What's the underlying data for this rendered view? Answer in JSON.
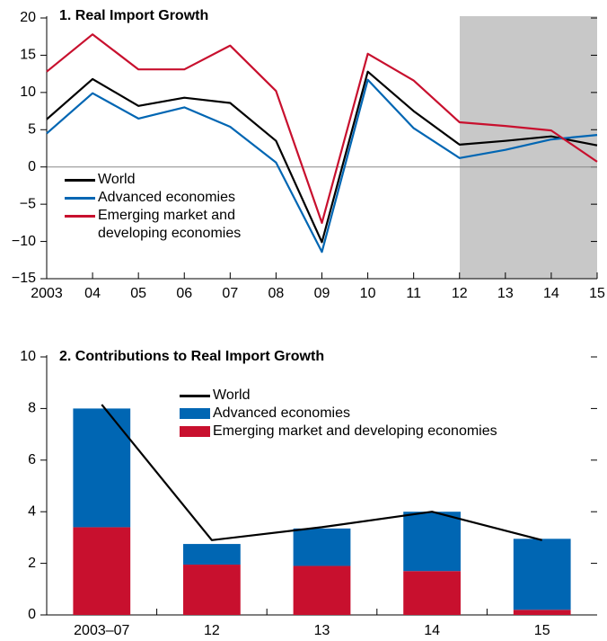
{
  "chart_data": [
    {
      "type": "line",
      "title": "1. Real Import Growth",
      "categories": [
        "2003",
        "04",
        "05",
        "06",
        "07",
        "08",
        "09",
        "10",
        "11",
        "12",
        "13",
        "14",
        "15"
      ],
      "series": [
        {
          "name": "World",
          "color": "#000000",
          "values": [
            6.4,
            11.8,
            8.2,
            9.3,
            8.6,
            3.5,
            -10.1,
            12.8,
            7.5,
            3.0,
            3.5,
            4.1,
            2.9
          ]
        },
        {
          "name": "Advanced economies",
          "color": "#0066b3",
          "values": [
            4.5,
            9.9,
            6.5,
            8.0,
            5.4,
            0.6,
            -11.4,
            11.7,
            5.2,
            1.2,
            2.3,
            3.7,
            4.3
          ]
        },
        {
          "name": "Emerging market and developing economies",
          "color": "#c8102e",
          "values": [
            12.8,
            17.8,
            13.1,
            13.1,
            16.3,
            10.2,
            -7.5,
            15.2,
            11.6,
            6.0,
            5.5,
            4.9,
            0.7
          ]
        }
      ],
      "ylim": [
        -15,
        20
      ],
      "yticks": [
        {
          "value": -15,
          "label": "−15"
        },
        {
          "value": -10,
          "label": "−10"
        },
        {
          "value": -5,
          "label": "−5"
        },
        0,
        5,
        10,
        15,
        20
      ]
    },
    {
      "type": "stacked_bar",
      "title": "2. Contributions to Real Import Growth",
      "categories": [
        "2003–07",
        "12",
        "13",
        "14",
        "15"
      ],
      "series": [
        {
          "name": "World",
          "kind": "line",
          "color": "#000000",
          "values": [
            8.15,
            2.9,
            3.4,
            4.0,
            2.9
          ]
        },
        {
          "name": "Advanced economies",
          "kind": "bar",
          "color": "#0066b3",
          "values": [
            4.6,
            0.8,
            1.45,
            2.3,
            2.75
          ]
        },
        {
          "name": "Emerging market and developing economies",
          "kind": "bar",
          "color": "#c8102e",
          "values": [
            3.4,
            1.95,
            1.9,
            1.7,
            0.2
          ]
        }
      ],
      "ylim": [
        0,
        10
      ],
      "yticks": [
        0,
        2,
        4,
        6,
        8,
        10
      ]
    }
  ]
}
